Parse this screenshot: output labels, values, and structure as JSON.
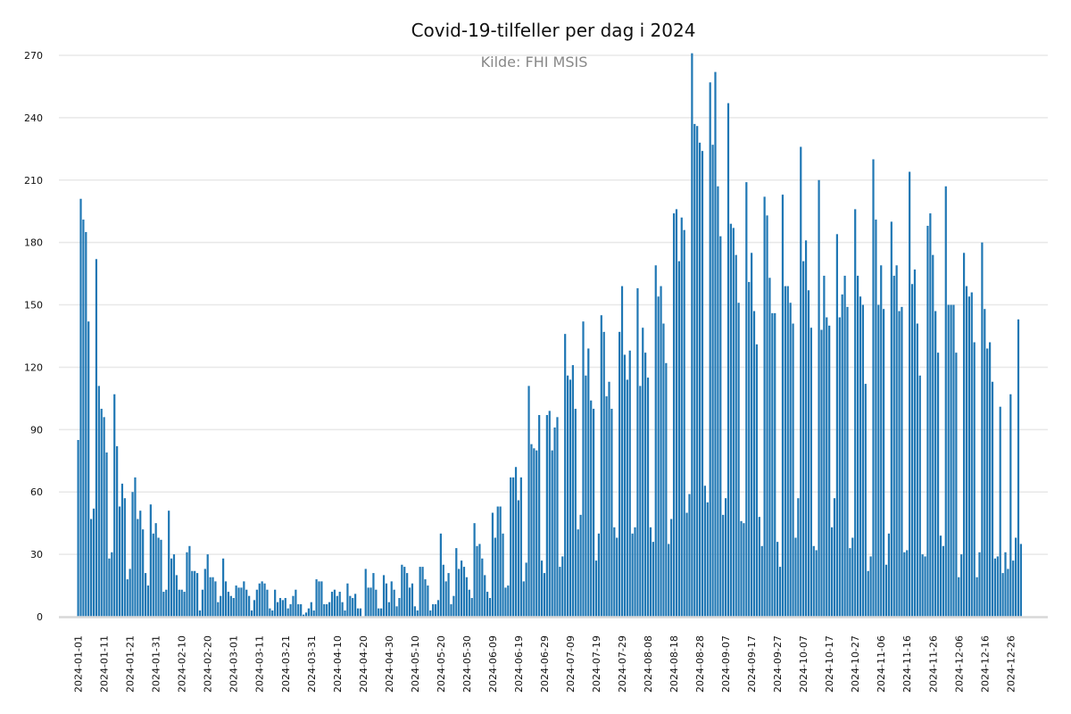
{
  "chart_data": {
    "type": "bar",
    "title": "Covid-19-tilfeller per dag i 2024",
    "subtitle": "Kilde: FHI MSIS",
    "xlabel": "",
    "ylabel": "",
    "ylim": [
      0,
      270
    ],
    "yticks": [
      0,
      30,
      60,
      90,
      120,
      150,
      180,
      210,
      240,
      270
    ],
    "xticks": [
      "2024-01-01",
      "2024-01-11",
      "2024-01-21",
      "2024-01-31",
      "2024-02-10",
      "2024-02-20",
      "2024-03-01",
      "2024-03-11",
      "2024-03-21",
      "2024-03-31",
      "2024-04-10",
      "2024-04-20",
      "2024-04-30",
      "2024-05-10",
      "2024-05-20",
      "2024-05-30",
      "2024-06-09",
      "2024-06-19",
      "2024-06-29",
      "2024-07-09",
      "2024-07-19",
      "2024-07-29",
      "2024-08-08",
      "2024-08-18",
      "2024-08-28",
      "2024-09-07",
      "2024-09-17",
      "2024-09-27",
      "2024-10-07",
      "2024-10-17",
      "2024-10-27",
      "2024-11-06",
      "2024-11-16",
      "2024-11-26",
      "2024-12-06",
      "2024-12-16",
      "2024-12-26"
    ],
    "grid": true,
    "color": "#1f77b4",
    "x_start": "2024-01-01",
    "x_end": "2024-12-31",
    "values": [
      85,
      201,
      191,
      185,
      142,
      47,
      52,
      172,
      111,
      100,
      96,
      79,
      28,
      31,
      107,
      82,
      53,
      64,
      57,
      18,
      23,
      60,
      67,
      47,
      51,
      42,
      21,
      15,
      54,
      40,
      45,
      38,
      37,
      12,
      13,
      51,
      28,
      30,
      20,
      13,
      13,
      12,
      31,
      34,
      22,
      22,
      21,
      3,
      13,
      23,
      30,
      19,
      19,
      17,
      7,
      10,
      28,
      17,
      12,
      10,
      9,
      15,
      14,
      14,
      17,
      13,
      10,
      3,
      8,
      13,
      16,
      17,
      16,
      13,
      4,
      3,
      13,
      7,
      9,
      8,
      9,
      4,
      6,
      10,
      13,
      6,
      6,
      1,
      2,
      4,
      7,
      3,
      18,
      17,
      17,
      6,
      6,
      7,
      12,
      13,
      10,
      12,
      7,
      3,
      16,
      10,
      9,
      11,
      4,
      4,
      0,
      23,
      14,
      14,
      21,
      13,
      4,
      4,
      20,
      16,
      7,
      17,
      13,
      5,
      9,
      25,
      24,
      21,
      14,
      16,
      5,
      3,
      24,
      24,
      18,
      15,
      3,
      6,
      6,
      8,
      40,
      25,
      17,
      21,
      6,
      10,
      33,
      23,
      27,
      24,
      19,
      13,
      9,
      45,
      34,
      35,
      28,
      20,
      12,
      9,
      50,
      38,
      53,
      53,
      40,
      14,
      15,
      67,
      67,
      72,
      56,
      67,
      17,
      26,
      111,
      83,
      81,
      80,
      97,
      27,
      21,
      97,
      99,
      80,
      91,
      96,
      24,
      29,
      136,
      116,
      114,
      121,
      100,
      42,
      49,
      142,
      116,
      129,
      104,
      100,
      27,
      40,
      145,
      137,
      106,
      113,
      100,
      43,
      38,
      137,
      159,
      126,
      114,
      128,
      40,
      43,
      158,
      111,
      139,
      127,
      115,
      43,
      36,
      169,
      154,
      159,
      141,
      122,
      35,
      47,
      194,
      196,
      171,
      192,
      186,
      50,
      59,
      271,
      237,
      236,
      228,
      224,
      63,
      55,
      257,
      227,
      262,
      207,
      183,
      49,
      57,
      247,
      189,
      187,
      174,
      151,
      46,
      45,
      209,
      161,
      175,
      147,
      131,
      48,
      34,
      202,
      193,
      163,
      146,
      146,
      36,
      24,
      203,
      159,
      159,
      151,
      141,
      38,
      57,
      226,
      171,
      181,
      157,
      139,
      34,
      32,
      210,
      138,
      164,
      144,
      140,
      43,
      57,
      184,
      144,
      155,
      164,
      149,
      33,
      38,
      196,
      164,
      154,
      150,
      112,
      22,
      29,
      220,
      191,
      150,
      169,
      148,
      25,
      40,
      190,
      164,
      169,
      147,
      149,
      31,
      32,
      214,
      160,
      167,
      141,
      116,
      30,
      29,
      188,
      194,
      174,
      147,
      127,
      39,
      34,
      207,
      150,
      150,
      150,
      127,
      19,
      30,
      175,
      159,
      154,
      156,
      132,
      19,
      31,
      180,
      148,
      129,
      132,
      113,
      28,
      29,
      101,
      21,
      31,
      23,
      107,
      27,
      38,
      143,
      35
    ]
  }
}
